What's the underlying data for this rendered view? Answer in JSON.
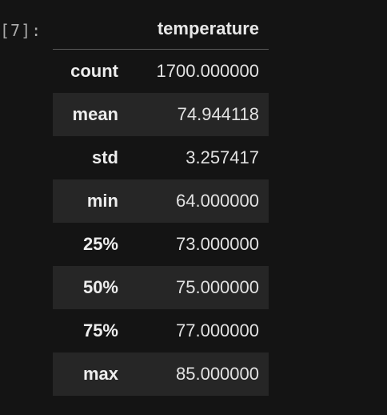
{
  "cell": {
    "prompt": "[7]:"
  },
  "table": {
    "column_header": "temperature",
    "rows": [
      {
        "label": "count",
        "value": "1700.000000"
      },
      {
        "label": "mean",
        "value": "74.944118"
      },
      {
        "label": "std",
        "value": "3.257417"
      },
      {
        "label": "min",
        "value": "64.000000"
      },
      {
        "label": "25%",
        "value": "73.000000"
      },
      {
        "label": "50%",
        "value": "75.000000"
      },
      {
        "label": "75%",
        "value": "77.000000"
      },
      {
        "label": "max",
        "value": "85.000000"
      }
    ]
  }
}
